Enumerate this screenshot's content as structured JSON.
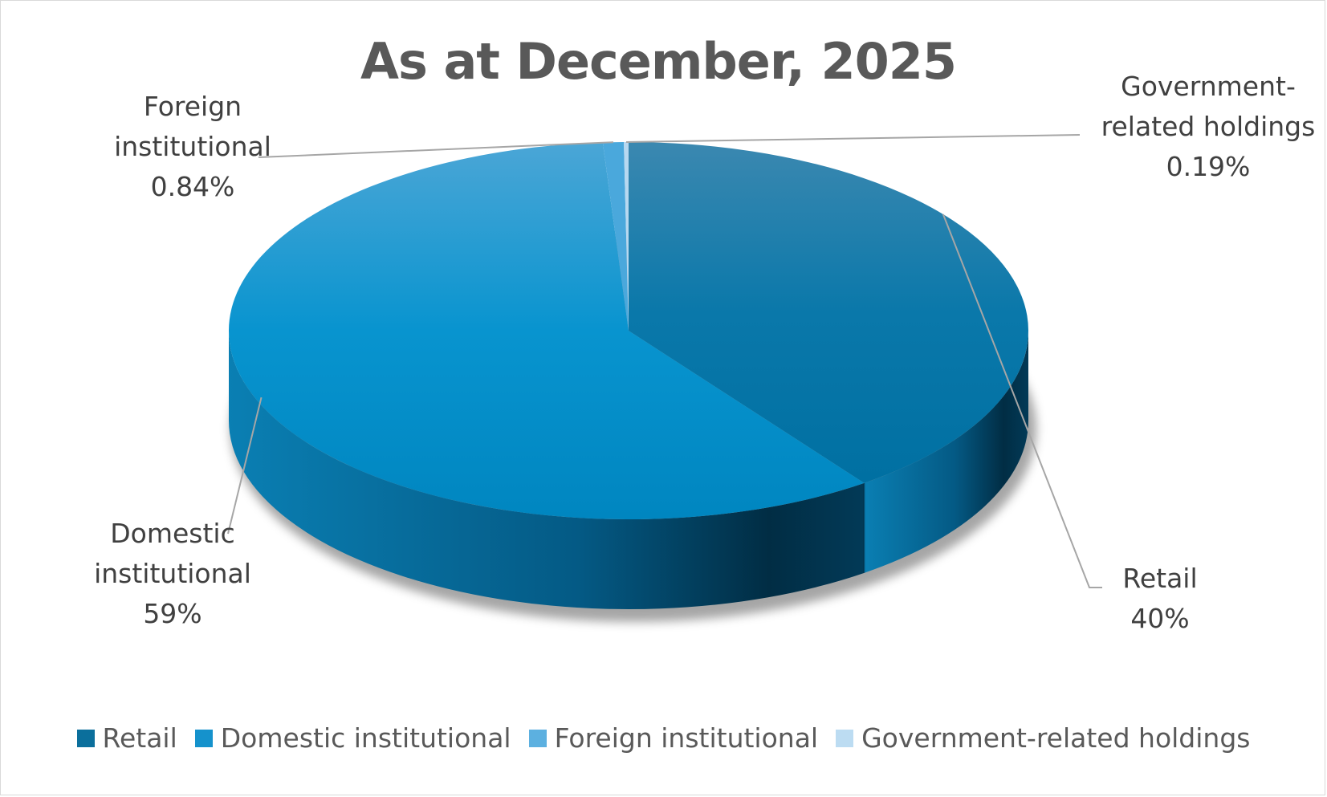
{
  "chart_data": {
    "type": "pie",
    "style": "3d",
    "title": "As at December, 2025",
    "legend_position": "bottom",
    "slices": [
      {
        "name": "Retail",
        "value": 39.97,
        "label": "40%",
        "color": "#0072a3"
      },
      {
        "name": "Domestic institutional",
        "value": 59.0,
        "label": "59%",
        "color": "#0b94cf"
      },
      {
        "name": "Foreign institutional",
        "value": 0.84,
        "label": "0.84%",
        "color": "#4aa8dc"
      },
      {
        "name": "Government-related holdings",
        "value": 0.19,
        "label": "0.19%",
        "color": "#b7d8f0"
      }
    ],
    "label_lines": [
      {
        "slice": "Government-related holdings",
        "lines": [
          "Government-",
          "related holdings"
        ],
        "pct": "0.19%"
      },
      {
        "slice": "Foreign institutional",
        "lines": [
          "Foreign",
          "institutional"
        ],
        "pct": "0.84%"
      },
      {
        "slice": "Domestic institutional",
        "lines": [
          "Domestic",
          "institutional"
        ],
        "pct": "59%"
      },
      {
        "slice": "Retail",
        "lines": [
          "Retail"
        ],
        "pct": "40%"
      }
    ]
  }
}
